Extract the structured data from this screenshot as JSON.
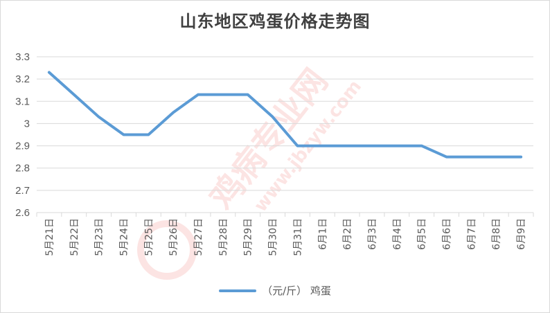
{
  "colors": {
    "series": "#5b9bd5",
    "grid": "#d9d9d9",
    "text": "#595959",
    "title": "#404040",
    "watermark": "#e8554e"
  },
  "watermark": {
    "brand": "鸡病专业网",
    "url": "www.jbzyw.com"
  },
  "chart_data": {
    "type": "line",
    "title": "山东地区鸡蛋价格走势图",
    "xlabel": "",
    "ylabel": "",
    "ylim": [
      2.6,
      3.3
    ],
    "yticks": [
      2.6,
      2.7,
      2.8,
      2.9,
      3,
      3.1,
      3.2,
      3.3
    ],
    "grid": true,
    "legend_position": "bottom",
    "categories": [
      "5月21日",
      "5月22日",
      "5月23日",
      "5月24日",
      "5月25日",
      "5月26日",
      "5月27日",
      "5月28日",
      "5月29日",
      "5月30日",
      "5月31日",
      "6月1日",
      "6月2日",
      "6月3日",
      "6月4日",
      "6月5日",
      "6月6日",
      "6月7日",
      "6月8日",
      "6月9日"
    ],
    "series": [
      {
        "name": "（元/斤） 鸡蛋",
        "values": [
          3.23,
          3.13,
          3.03,
          2.95,
          2.95,
          3.05,
          3.13,
          3.13,
          3.13,
          3.03,
          2.9,
          2.9,
          2.9,
          2.9,
          2.9,
          2.9,
          2.85,
          2.85,
          2.85,
          2.85
        ]
      }
    ]
  }
}
